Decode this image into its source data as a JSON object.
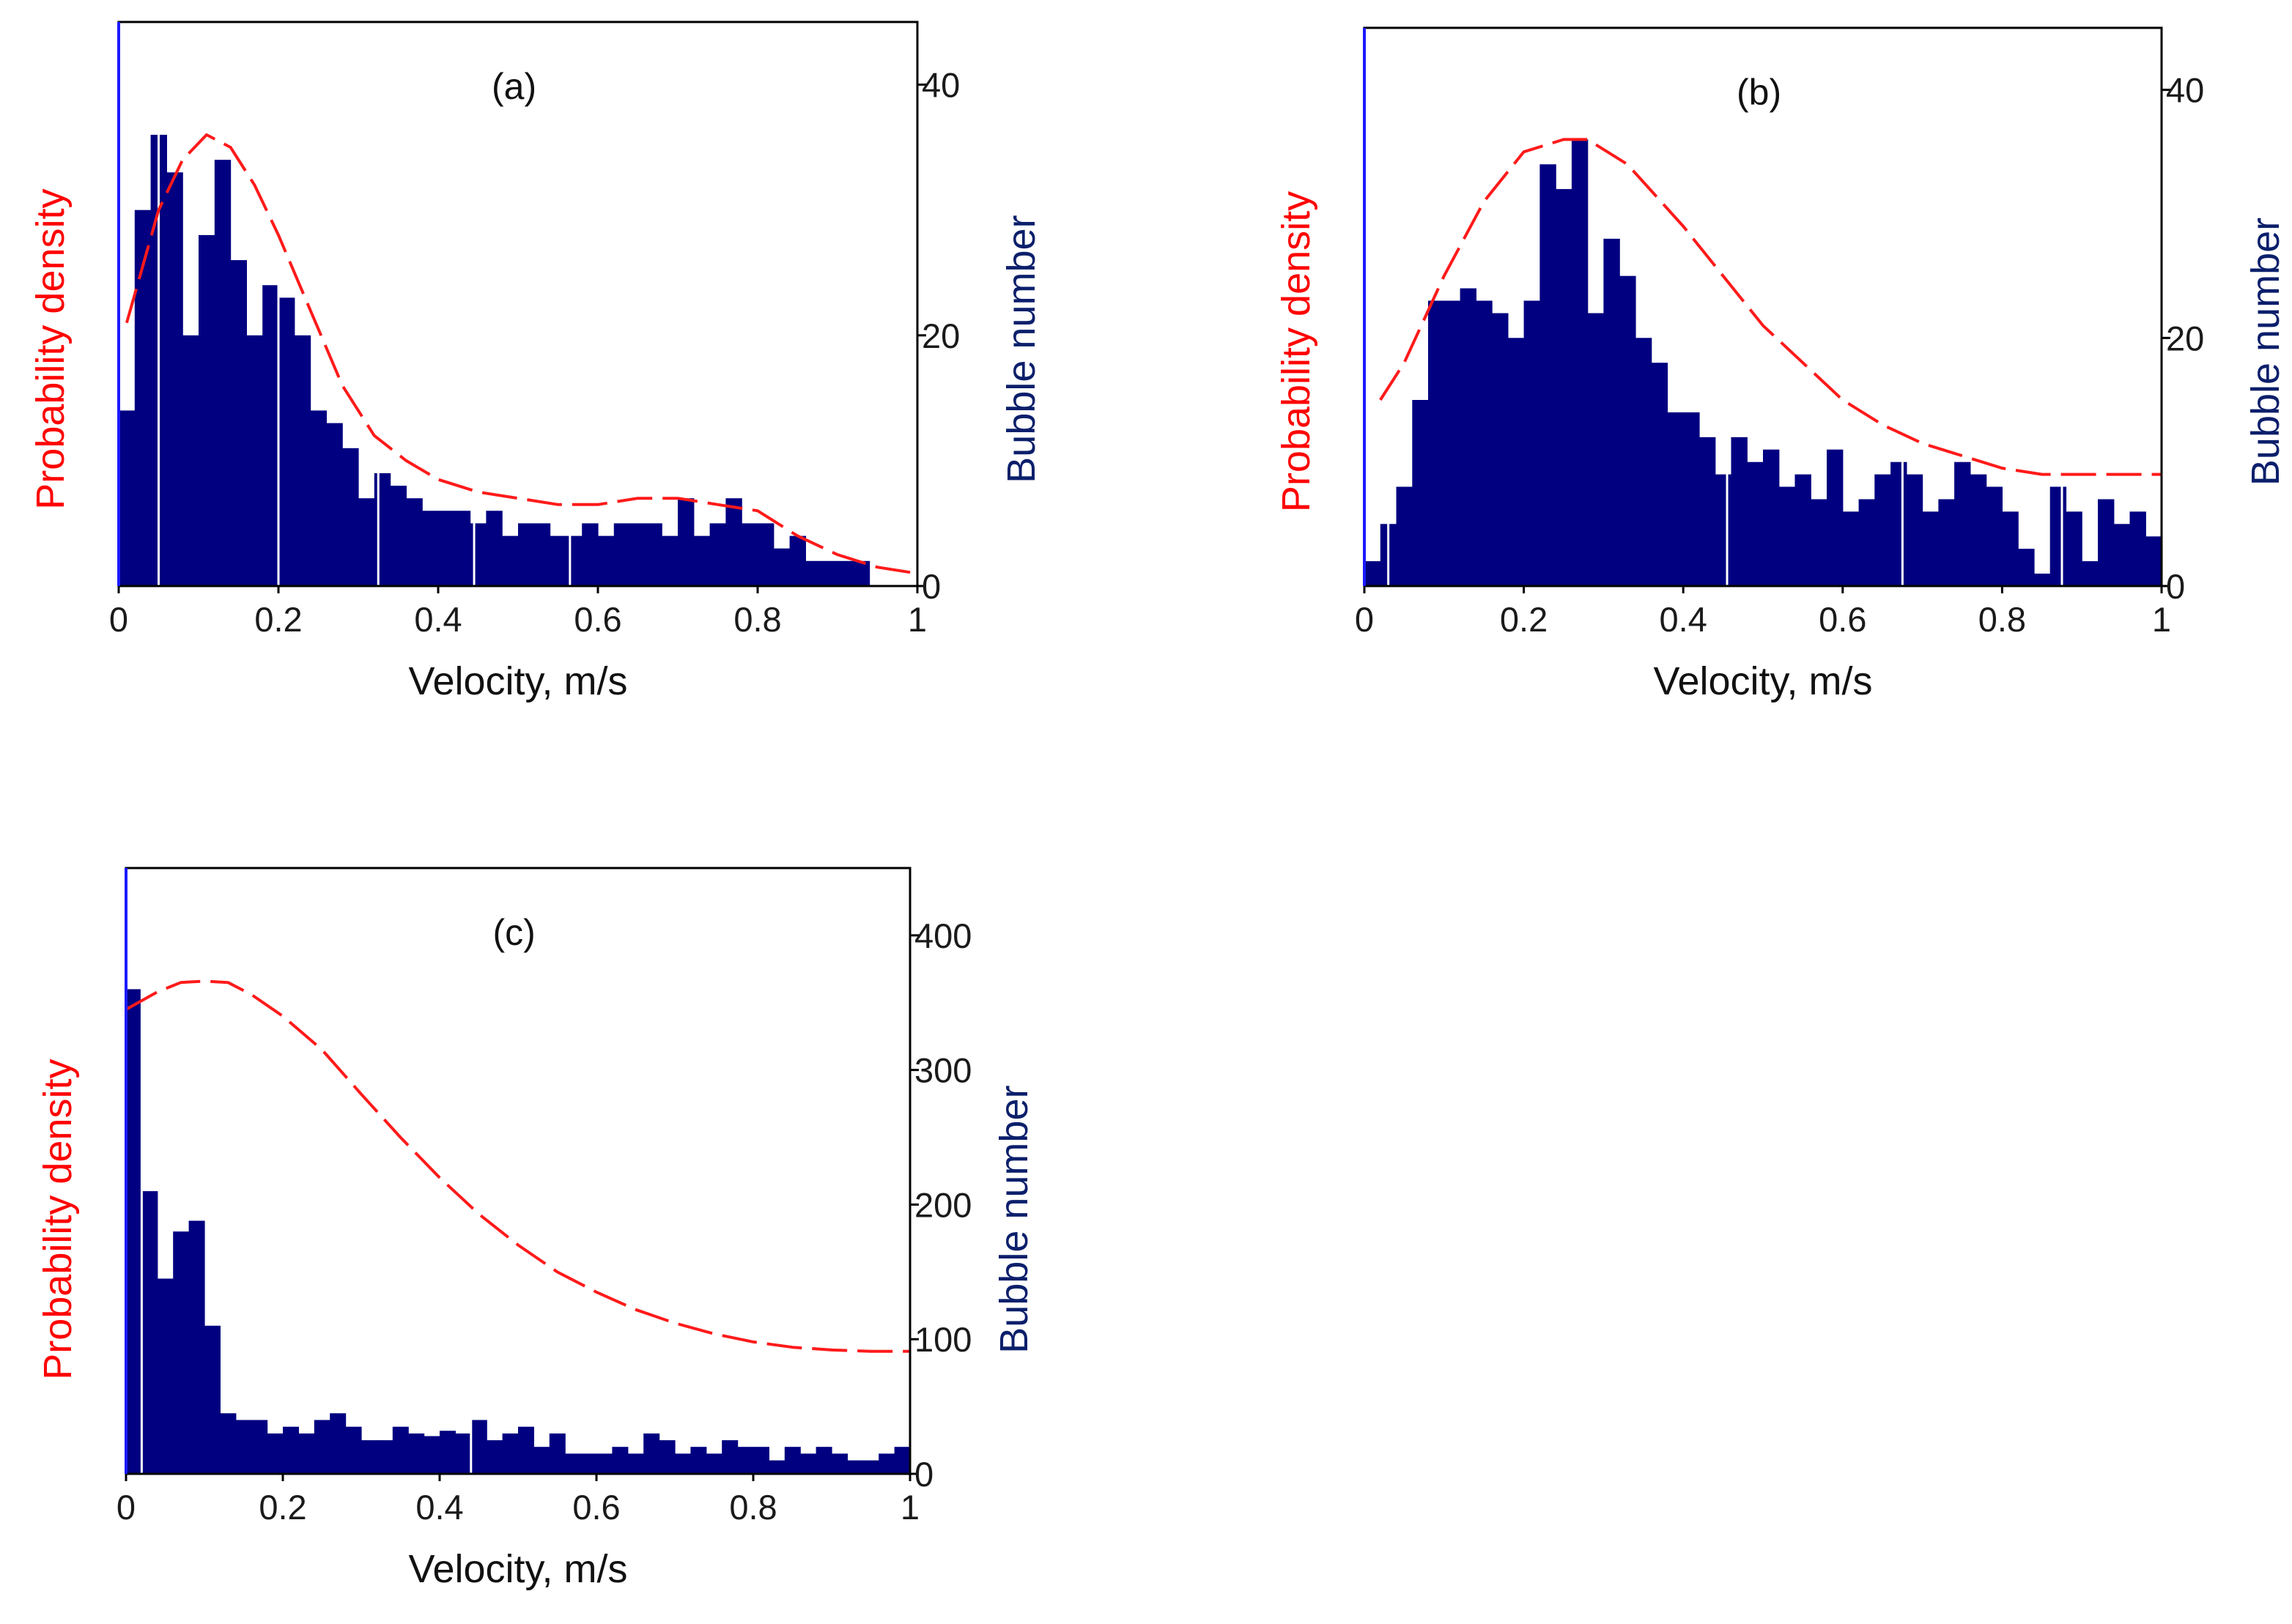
{
  "colors": {
    "bars": "#000080",
    "fit_curve": "#ff1a1a",
    "left_axis": "#1a1aff",
    "frame": "#000000",
    "ylabel_left": "#ff0000",
    "ylabel_right": "#0b1f6b",
    "bar_gaps": "#ffffff"
  },
  "chart_data": [
    {
      "type": "bar",
      "panel": "(a)",
      "xlabel": "Velocity, m/s",
      "ylabel_left": "Probability density",
      "ylabel_right": "Bubble number",
      "xlim": [
        0,
        1
      ],
      "ylim": [
        0,
        45
      ],
      "x_ticks": [
        "0",
        "0.2",
        "0.4",
        "0.6",
        "0.8",
        "1"
      ],
      "y_ticks": [
        "0",
        "20",
        "40"
      ],
      "bin_width": 0.02,
      "bin_start": 0,
      "values": [
        14,
        30,
        36,
        33,
        20,
        28,
        34,
        26,
        20,
        24,
        23,
        20,
        14,
        13,
        11,
        7,
        9,
        8,
        7,
        6,
        6,
        6,
        5,
        6,
        4,
        5,
        5,
        4,
        4,
        5,
        4,
        5,
        5,
        5,
        4,
        7,
        4,
        5,
        7,
        5,
        5,
        3,
        4,
        2,
        2,
        2,
        2,
        0,
        0,
        0
      ],
      "white_gridlines_x": [
        0.05,
        0.2,
        0.325,
        0.445,
        0.565
      ],
      "fit_curve": {
        "style": "dashed",
        "x": [
          0.01,
          0.05,
          0.08,
          0.11,
          0.14,
          0.17,
          0.2,
          0.24,
          0.28,
          0.32,
          0.36,
          0.4,
          0.45,
          0.5,
          0.55,
          0.6,
          0.65,
          0.7,
          0.75,
          0.8,
          0.85,
          0.9,
          0.95,
          1.0
        ],
        "y": [
          21,
          30,
          34,
          36,
          35,
          32,
          28,
          22,
          16,
          12,
          10,
          8.5,
          7.5,
          7,
          6.5,
          6.5,
          7,
          7,
          6.5,
          6,
          4,
          2.5,
          1.5,
          1
        ]
      }
    },
    {
      "type": "bar",
      "panel": "(b)",
      "xlabel": "Velocity, m/s",
      "ylabel_left": "Probability density",
      "ylabel_right": "Bubble number",
      "xlim": [
        0,
        1
      ],
      "ylim": [
        0,
        45
      ],
      "x_ticks": [
        "0",
        "0.2",
        "0.4",
        "0.6",
        "0.8",
        "1"
      ],
      "y_ticks": [
        "0",
        "20",
        "40"
      ],
      "bin_width": 0.02,
      "bin_start": 0,
      "values": [
        2,
        5,
        8,
        15,
        23,
        23,
        24,
        23,
        22,
        20,
        23,
        34,
        32,
        36,
        22,
        28,
        25,
        20,
        18,
        14,
        14,
        12,
        9,
        12,
        10,
        11,
        8,
        9,
        7,
        11,
        6,
        7,
        9,
        10,
        9,
        6,
        7,
        10,
        9,
        8,
        6,
        3,
        1,
        8,
        6,
        2,
        7,
        5,
        6,
        4
      ],
      "white_gridlines_x": [
        0.03,
        0.455,
        0.675,
        0.875
      ],
      "fit_curve": {
        "style": "dashed",
        "x": [
          0.02,
          0.05,
          0.1,
          0.15,
          0.2,
          0.25,
          0.28,
          0.33,
          0.4,
          0.45,
          0.5,
          0.55,
          0.6,
          0.65,
          0.7,
          0.75,
          0.8,
          0.85,
          0.9,
          0.95,
          1.0
        ],
        "y": [
          15,
          18,
          25,
          31,
          35,
          36,
          36,
          34,
          29,
          25,
          21,
          18,
          15,
          13,
          11.5,
          10.5,
          9.5,
          9,
          9,
          9,
          9
        ]
      }
    },
    {
      "type": "bar",
      "panel": "(c)",
      "xlabel": "Velocity, m/s",
      "ylabel_left": "Probability density",
      "ylabel_right": "Bubble number",
      "xlim": [
        0,
        1
      ],
      "ylim": [
        0,
        450
      ],
      "x_ticks": [
        "0",
        "0.2",
        "0.4",
        "0.6",
        "0.8",
        "1"
      ],
      "y_ticks": [
        "0",
        "100",
        "200",
        "300",
        "400"
      ],
      "bin_width": 0.02,
      "bin_start": 0,
      "values": [
        360,
        210,
        145,
        180,
        188,
        110,
        45,
        40,
        40,
        30,
        35,
        30,
        40,
        45,
        35,
        25,
        25,
        35,
        30,
        28,
        32,
        30,
        40,
        25,
        30,
        35,
        20,
        30,
        15,
        15,
        15,
        20,
        15,
        30,
        25,
        15,
        20,
        15,
        25,
        20,
        20,
        10,
        20,
        15,
        20,
        15,
        10,
        10,
        15,
        20
      ],
      "white_gridlines_x": [
        0.02,
        0.44
      ],
      "fit_curve": {
        "style": "dashed",
        "x": [
          0.0,
          0.04,
          0.07,
          0.1,
          0.13,
          0.16,
          0.2,
          0.25,
          0.3,
          0.35,
          0.4,
          0.45,
          0.5,
          0.55,
          0.6,
          0.65,
          0.7,
          0.75,
          0.8,
          0.85,
          0.9,
          0.95,
          1.0
        ],
        "y": [
          345,
          358,
          365,
          366,
          365,
          356,
          340,
          315,
          282,
          250,
          220,
          193,
          170,
          150,
          135,
          122,
          112,
          104,
          98,
          94,
          92,
          91,
          91
        ]
      }
    }
  ]
}
